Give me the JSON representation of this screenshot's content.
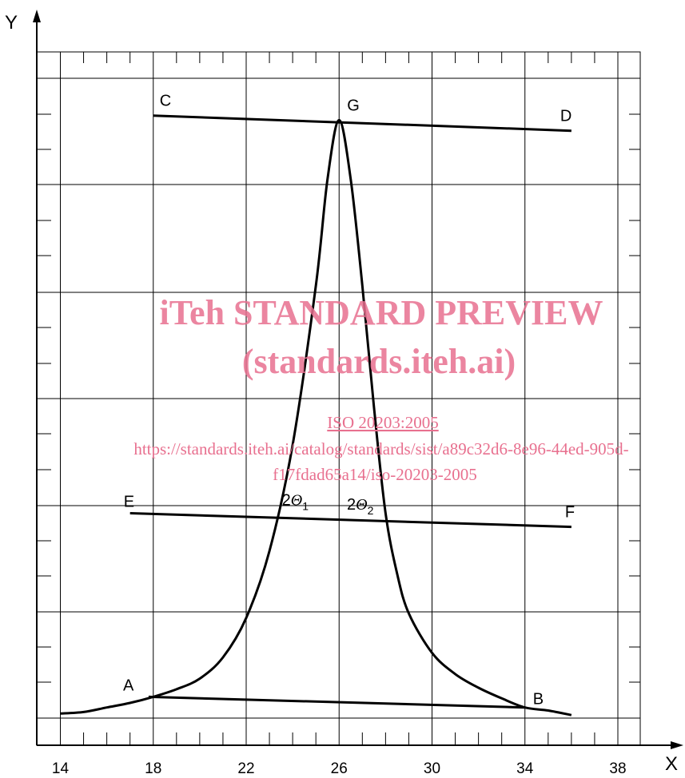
{
  "chart_data": {
    "type": "line",
    "xlabel": "X",
    "ylabel": "Y",
    "x_ticks": [
      "14",
      "18",
      "22",
      "26",
      "30",
      "34",
      "38"
    ],
    "xlim": [
      13.5,
      38.9
    ],
    "grid": true,
    "series": [
      {
        "x": [
          14.0,
          15.0,
          16.0,
          17.0,
          18.0,
          19.0,
          20.0,
          21.0,
          22.0,
          23.0,
          24.0,
          25.0,
          25.5,
          26.0,
          26.5,
          27.0,
          27.5,
          28.0,
          28.5,
          29.0,
          30.0,
          31.0,
          32.0,
          33.0,
          34.0,
          35.0,
          36.0
        ],
        "y": [
          0.03,
          0.04,
          0.07,
          0.1,
          0.14,
          0.19,
          0.26,
          0.4,
          0.66,
          1.1,
          1.8,
          2.85,
          3.55,
          3.94,
          3.55,
          2.85,
          2.05,
          1.35,
          0.95,
          0.69,
          0.43,
          0.29,
          0.2,
          0.13,
          0.07,
          0.05,
          0.02
        ]
      }
    ],
    "baselines": [
      {
        "from": "C",
        "to": "D",
        "x": [
          18.0,
          36.0
        ],
        "y": [
          3.97,
          3.87
        ]
      },
      {
        "from": "E",
        "to": "F",
        "x": [
          17.0,
          36.0
        ],
        "y": [
          1.35,
          1.26
        ]
      },
      {
        "from": "A",
        "to": "B",
        "x": [
          17.8,
          34.0
        ],
        "y": [
          0.14,
          0.07
        ]
      }
    ],
    "points": [
      {
        "label": "A",
        "x": 17.8,
        "y": 0.14
      },
      {
        "label": "B",
        "x": 34.0,
        "y": 0.07
      },
      {
        "label": "C",
        "x": 18.0,
        "y": 3.97
      },
      {
        "label": "D",
        "x": 36.0,
        "y": 3.87
      },
      {
        "label": "E",
        "x": 17.0,
        "y": 1.35
      },
      {
        "label": "F",
        "x": 36.0,
        "y": 1.26
      },
      {
        "label": "G",
        "x": 26.0,
        "y": 3.94
      }
    ],
    "annotations": [
      {
        "prefix": "2",
        "symbol": "Θ",
        "subscript": "1",
        "x": 24.5,
        "y": 1.33
      },
      {
        "prefix": "2",
        "symbol": "Θ",
        "subscript": "2",
        "x": 27.3,
        "y": 1.3
      }
    ]
  },
  "watermark": {
    "line1": "iTeh STANDARD PREVIEW",
    "line2": "(standards.iteh.ai)",
    "line3": "ISO 20203:2005",
    "line4": "https://standards.iteh.ai/catalog/standards/sist/a89c32d6-8e96-44ed-905d-",
    "line5": "f17fdad65a14/iso-20203-2005",
    "color": "#e8708f"
  }
}
